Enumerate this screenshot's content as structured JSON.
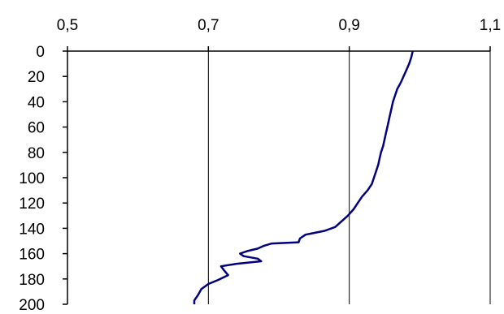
{
  "chart_data": {
    "type": "line",
    "title": "",
    "xlabel": "",
    "ylabel": "",
    "x_axis_position": "top",
    "y_axis_inverted": true,
    "xlim": [
      0.5,
      1.1
    ],
    "ylim": [
      0,
      200
    ],
    "x_ticks": [
      "0,5",
      "0,7",
      "0,9",
      "1,1"
    ],
    "x_tick_values": [
      0.5,
      0.7,
      0.9,
      1.1
    ],
    "y_ticks": [
      "0",
      "20",
      "40",
      "60",
      "80",
      "100",
      "120",
      "140",
      "160",
      "180",
      "200"
    ],
    "y_tick_values": [
      0,
      20,
      40,
      60,
      80,
      100,
      120,
      140,
      160,
      180,
      200
    ],
    "grid": "vertical",
    "colors": {
      "line": "#000080",
      "axis": "#000000",
      "grid": "#000000"
    },
    "series": [
      {
        "points": [
          [
            0.99,
            0
          ],
          [
            0.988,
            5
          ],
          [
            0.985,
            10
          ],
          [
            0.981,
            15
          ],
          [
            0.977,
            20
          ],
          [
            0.973,
            25
          ],
          [
            0.968,
            30
          ],
          [
            0.965,
            35
          ],
          [
            0.962,
            40
          ],
          [
            0.96,
            45
          ],
          [
            0.958,
            50
          ],
          [
            0.956,
            55
          ],
          [
            0.954,
            60
          ],
          [
            0.952,
            65
          ],
          [
            0.95,
            70
          ],
          [
            0.948,
            75
          ],
          [
            0.945,
            80
          ],
          [
            0.943,
            85
          ],
          [
            0.941,
            90
          ],
          [
            0.938,
            95
          ],
          [
            0.935,
            100
          ],
          [
            0.932,
            105
          ],
          [
            0.926,
            110
          ],
          [
            0.918,
            115
          ],
          [
            0.912,
            120
          ],
          [
            0.906,
            125
          ],
          [
            0.898,
            130
          ],
          [
            0.888,
            135
          ],
          [
            0.88,
            139
          ],
          [
            0.865,
            142
          ],
          [
            0.838,
            145
          ],
          [
            0.83,
            148
          ],
          [
            0.828,
            151
          ],
          [
            0.79,
            152
          ],
          [
            0.778,
            154
          ],
          [
            0.77,
            156
          ],
          [
            0.755,
            158
          ],
          [
            0.745,
            160
          ],
          [
            0.75,
            162
          ],
          [
            0.77,
            164
          ],
          [
            0.775,
            166
          ],
          [
            0.74,
            168
          ],
          [
            0.718,
            170
          ],
          [
            0.722,
            173
          ],
          [
            0.728,
            177
          ],
          [
            0.713,
            181
          ],
          [
            0.7,
            184
          ],
          [
            0.69,
            188
          ],
          [
            0.685,
            193
          ],
          [
            0.68,
            197
          ],
          [
            0.68,
            200
          ]
        ]
      }
    ]
  }
}
